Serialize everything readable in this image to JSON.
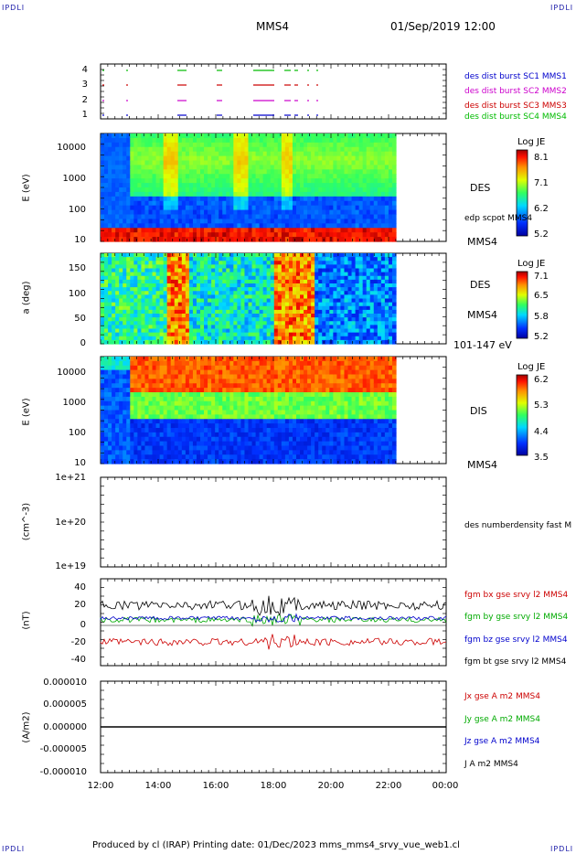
{
  "header": {
    "corner_tl": "IPDLI",
    "corner_tr": "IPDLI",
    "corner_bl": "IPDLI",
    "corner_br": "IPDLI",
    "spacecraft": "MMS4",
    "datetime": "01/Sep/2019 12:00"
  },
  "footer": {
    "text": "Produced by cl (IRAP)   Printing date: 01/Dec/2023   mms_mms4_srvy_vue_web1.cl"
  },
  "time_axis": {
    "ticks": [
      "12:00",
      "14:00",
      "16:00",
      "18:00",
      "20:00",
      "22:00",
      "00:00"
    ]
  },
  "chart_data": [
    {
      "id": "burst",
      "type": "scatter",
      "yticks": [
        "4",
        "3",
        "2",
        "1"
      ],
      "legend": [
        {
          "text": "des dist burst SC1 MMS1",
          "color": "#0000cc"
        },
        {
          "text": "des dist burst SC2 MMS2",
          "color": "#cc00cc"
        },
        {
          "text": "des dist burst SC3 MMS3",
          "color": "#cc0000"
        },
        {
          "text": "des dist burst SC4 MMS4",
          "color": "#00bb00"
        }
      ]
    },
    {
      "id": "des_energy",
      "type": "heatmap",
      "ylabel": "E (eV)",
      "yticks": [
        "10000",
        "1000",
        "100",
        "10"
      ],
      "label": "DES",
      "overlay_label": "edp scpot MMS4",
      "sc": "MMS4",
      "colorbar": {
        "title": "Log JE",
        "ticks": [
          "8.1",
          "7.1",
          "6.2",
          "5.2"
        ]
      }
    },
    {
      "id": "des_pitch",
      "type": "heatmap",
      "ylabel": "a (deg)",
      "yticks": [
        "150",
        "100",
        "50",
        "0"
      ],
      "label": "DES",
      "sc": "MMS4",
      "energy_range": "101-147 eV",
      "colorbar": {
        "title": "Log JE",
        "ticks": [
          "7.1",
          "6.5",
          "5.8",
          "5.2"
        ]
      }
    },
    {
      "id": "dis_energy",
      "type": "heatmap",
      "ylabel": "E (eV)",
      "yticks": [
        "10000",
        "1000",
        "100",
        "10"
      ],
      "label": "DIS",
      "sc": "MMS4",
      "colorbar": {
        "title": "Log JE",
        "ticks": [
          "6.2",
          "5.3",
          "4.4",
          "3.5"
        ]
      }
    },
    {
      "id": "density",
      "type": "line",
      "ylabel": "(cm^-3)",
      "yticks": [
        "1e+21",
        "1e+20",
        "1e+19"
      ],
      "legend": [
        {
          "text": "des numberdensity fast M",
          "color": "#000000"
        }
      ]
    },
    {
      "id": "bfield",
      "type": "line",
      "ylabel": "(nT)",
      "yticks": [
        "40",
        "20",
        "0",
        "-20",
        "-40"
      ],
      "ylim": [
        -45,
        45
      ],
      "legend": [
        {
          "text": "fgm bx gse srvy l2 MMS4",
          "color": "#cc0000"
        },
        {
          "text": "fgm by gse srvy l2 MMS4",
          "color": "#00aa00"
        },
        {
          "text": "fgm bz gse srvy l2 MMS4",
          "color": "#0000cc"
        },
        {
          "text": "fgm bt gse srvy l2 MMS4",
          "color": "#000000"
        }
      ]
    },
    {
      "id": "current",
      "type": "line",
      "ylabel": "(A/m2)",
      "yticks": [
        "0.000010",
        "0.000005",
        "0.000000",
        "-0.000005",
        "-0.000010"
      ],
      "legend": [
        {
          "text": "Jx gse A m2 MMS4",
          "color": "#cc0000"
        },
        {
          "text": "Jy gse A m2 MMS4",
          "color": "#00aa00"
        },
        {
          "text": "Jz gse A m2 MMS4",
          "color": "#0000cc"
        },
        {
          "text": "J A m2 MMS4",
          "color": "#000000"
        }
      ]
    }
  ]
}
